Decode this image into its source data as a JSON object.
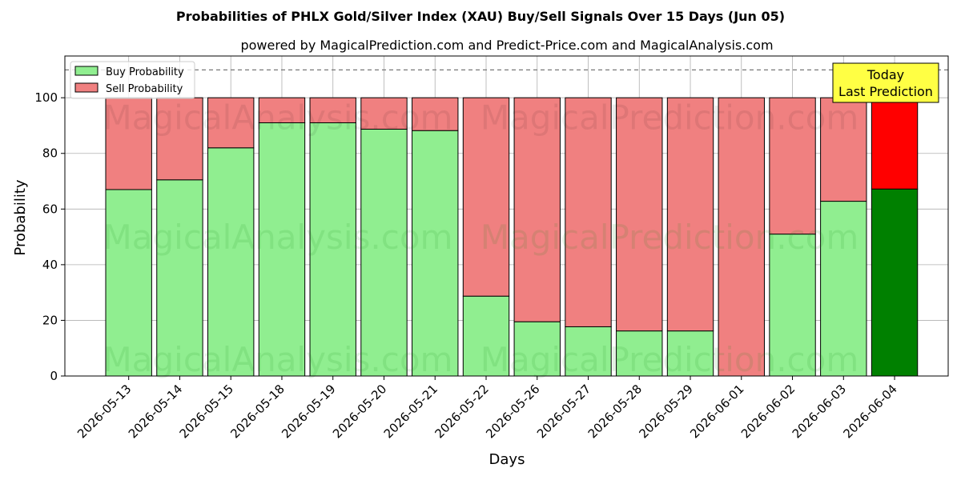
{
  "chart_data": {
    "type": "bar",
    "stacked": true,
    "title": "Probabilities of PHLX Gold/Silver Index (XAU) Buy/Sell Signals Over 15 Days (Jun 05)",
    "subtitle": "powered by MagicalPrediction.com and Predict-Price.com and MagicalAnalysis.com",
    "xlabel": "Days",
    "ylabel": "Probability",
    "ylim": [
      0,
      115
    ],
    "yticks": [
      0,
      20,
      40,
      60,
      80,
      100
    ],
    "reference_line": 110,
    "grid": true,
    "legend_position": "top-left",
    "categories": [
      "2026-05-13",
      "2026-05-14",
      "2026-05-15",
      "2026-05-18",
      "2026-05-19",
      "2026-05-20",
      "2026-05-21",
      "2026-05-22",
      "2026-05-26",
      "2026-05-27",
      "2026-05-28",
      "2026-05-29",
      "2026-06-01",
      "2026-06-02",
      "2026-06-03",
      "2026-06-04"
    ],
    "series": [
      {
        "name": "Buy Probability",
        "color": "#90ee90",
        "highlight_color": "#008000",
        "values": [
          67,
          70.5,
          82,
          91,
          91,
          88.7,
          88.2,
          28.7,
          19.5,
          17.7,
          16.2,
          16.2,
          0,
          51,
          62.8,
          67.2
        ]
      },
      {
        "name": "Sell Probability",
        "color": "#f08080",
        "highlight_color": "#ff0000",
        "values": [
          33,
          29.5,
          18,
          9,
          9,
          11.3,
          11.8,
          71.3,
          80.5,
          82.3,
          83.8,
          83.8,
          100,
          49,
          37.2,
          32.8
        ]
      }
    ],
    "highlight_last": true,
    "annotation": {
      "line1": "Today",
      "line2": "Last Prediction",
      "color": "#ffff44"
    },
    "watermarks": [
      "MagicalAnalysis.com",
      "MagicalPrediction.com"
    ]
  }
}
